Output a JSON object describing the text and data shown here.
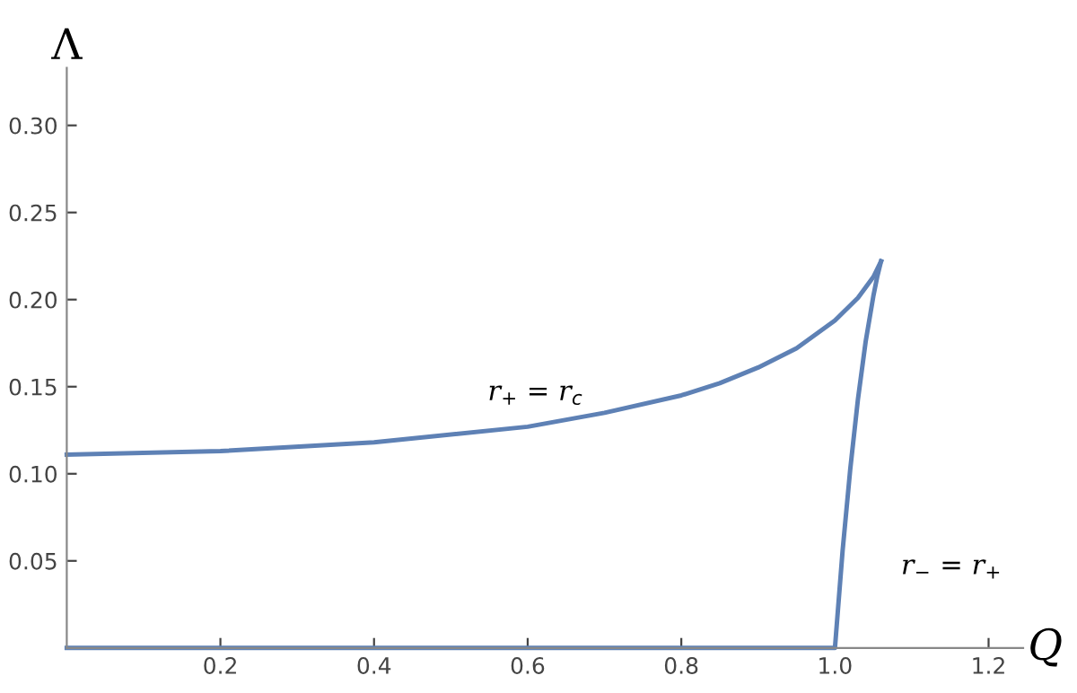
{
  "chart_data": {
    "type": "line",
    "xlabel": "Q",
    "ylabel": "Λ",
    "series": [
      {
        "color": "#5e81b5",
        "x": [
          0,
          0.2,
          0.4,
          0.6,
          0.7,
          0.8,
          0.85,
          0.9,
          0.95,
          1.0,
          1.03,
          1.05,
          1.06
        ],
        "values": [
          0.111,
          0.113,
          0.118,
          0.127,
          0.135,
          0.145,
          0.152,
          0.161,
          0.172,
          0.188,
          0.201,
          0.213,
          0.222
        ]
      },
      {
        "color": "#5e81b5",
        "x": [
          0,
          1.0,
          1.01,
          1.02,
          1.03,
          1.04,
          1.05,
          1.055,
          1.06
        ],
        "values": [
          0,
          0,
          0.056,
          0.103,
          0.143,
          0.176,
          0.202,
          0.213,
          0.222
        ]
      }
    ],
    "xlim": [
      0,
      1.245
    ],
    "ylim": [
      0,
      0.333
    ],
    "xticks": [
      {
        "value": 0.2,
        "label": "0.2"
      },
      {
        "value": 0.4,
        "label": "0.4"
      },
      {
        "value": 0.6,
        "label": "0.6"
      },
      {
        "value": 0.8,
        "label": "0.8"
      },
      {
        "value": 1.0,
        "label": "1.0"
      },
      {
        "value": 1.2,
        "label": "1.2"
      }
    ],
    "yticks": [
      {
        "value": 0.05,
        "label": "0.05"
      },
      {
        "value": 0.1,
        "label": "0.10"
      },
      {
        "value": 0.15,
        "label": "0.15"
      },
      {
        "value": 0.2,
        "label": "0.20"
      },
      {
        "value": 0.25,
        "label": "0.25"
      },
      {
        "value": 0.3,
        "label": "0.30"
      }
    ],
    "annotations": [
      "r$_{+}$ = r$_{c}$",
      "r$_{−}$ = r$_{+}$"
    ],
    "grid": false,
    "legend": false,
    "marker": "none",
    "line_style": "solid"
  }
}
